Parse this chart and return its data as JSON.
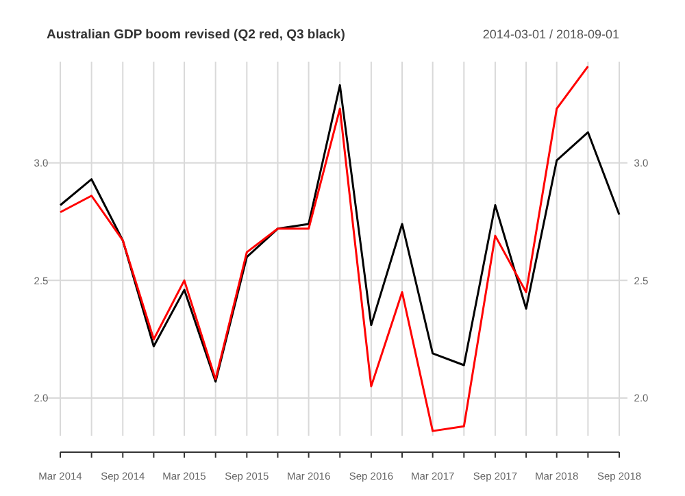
{
  "chart_data": {
    "type": "line",
    "title": "Australian GDP boom revised (Q2 red, Q3 black)",
    "subtitle": "2014-03-01 / 2018-09-01",
    "x": [
      "2014-03",
      "2014-06",
      "2014-09",
      "2014-12",
      "2015-03",
      "2015-06",
      "2015-09",
      "2015-12",
      "2016-03",
      "2016-06",
      "2016-09",
      "2016-12",
      "2017-03",
      "2017-06",
      "2017-09",
      "2017-12",
      "2018-03",
      "2018-06",
      "2018-09"
    ],
    "series": [
      {
        "color": "#000000",
        "values": [
          2.82,
          2.93,
          2.67,
          2.22,
          2.46,
          2.07,
          2.6,
          2.72,
          2.74,
          3.33,
          2.31,
          2.74,
          2.19,
          2.14,
          2.82,
          2.38,
          3.01,
          3.13,
          2.78
        ]
      },
      {
        "color": "#ff0000",
        "values": [
          2.79,
          2.86,
          2.67,
          2.25,
          2.5,
          2.08,
          2.62,
          2.72,
          2.72,
          3.23,
          2.05,
          2.45,
          1.86,
          1.88,
          2.69,
          2.45,
          3.23,
          3.41,
          null
        ]
      }
    ],
    "xlim": [
      "2014-03",
      "2018-09"
    ],
    "xticks": [
      {
        "value": "2014-03",
        "label": "Mar 2014"
      },
      {
        "value": "2014-06",
        "label": null
      },
      {
        "value": "2014-09",
        "label": "Sep 2014"
      },
      {
        "value": "2014-12",
        "label": null
      },
      {
        "value": "2015-03",
        "label": "Mar 2015"
      },
      {
        "value": "2015-06",
        "label": null
      },
      {
        "value": "2015-09",
        "label": "Sep 2015"
      },
      {
        "value": "2015-12",
        "label": null
      },
      {
        "value": "2016-03",
        "label": "Mar 2016"
      },
      {
        "value": "2016-06",
        "label": null
      },
      {
        "value": "2016-09",
        "label": "Sep 2016"
      },
      {
        "value": "2016-12",
        "label": null
      },
      {
        "value": "2017-03",
        "label": "Mar 2017"
      },
      {
        "value": "2017-06",
        "label": null
      },
      {
        "value": "2017-09",
        "label": "Sep 2017"
      },
      {
        "value": "2017-12",
        "label": null
      },
      {
        "value": "2018-03",
        "label": "Mar 2018"
      },
      {
        "value": "2018-06",
        "label": null
      },
      {
        "value": "2018-09",
        "label": "Sep 2018"
      }
    ],
    "ylim": [
      1.84,
      3.43
    ],
    "yticks": [
      {
        "value": 2,
        "label": "2.0"
      },
      2.5,
      {
        "value": 3,
        "label": "3.0"
      }
    ],
    "y2lim": [
      1.84,
      3.43
    ],
    "y2ticks": [
      {
        "value": 2,
        "label": "2.0"
      },
      2.5,
      {
        "value": 3,
        "label": "3.0"
      }
    ],
    "grid": true,
    "marker": "none",
    "line_style": "solid"
  }
}
